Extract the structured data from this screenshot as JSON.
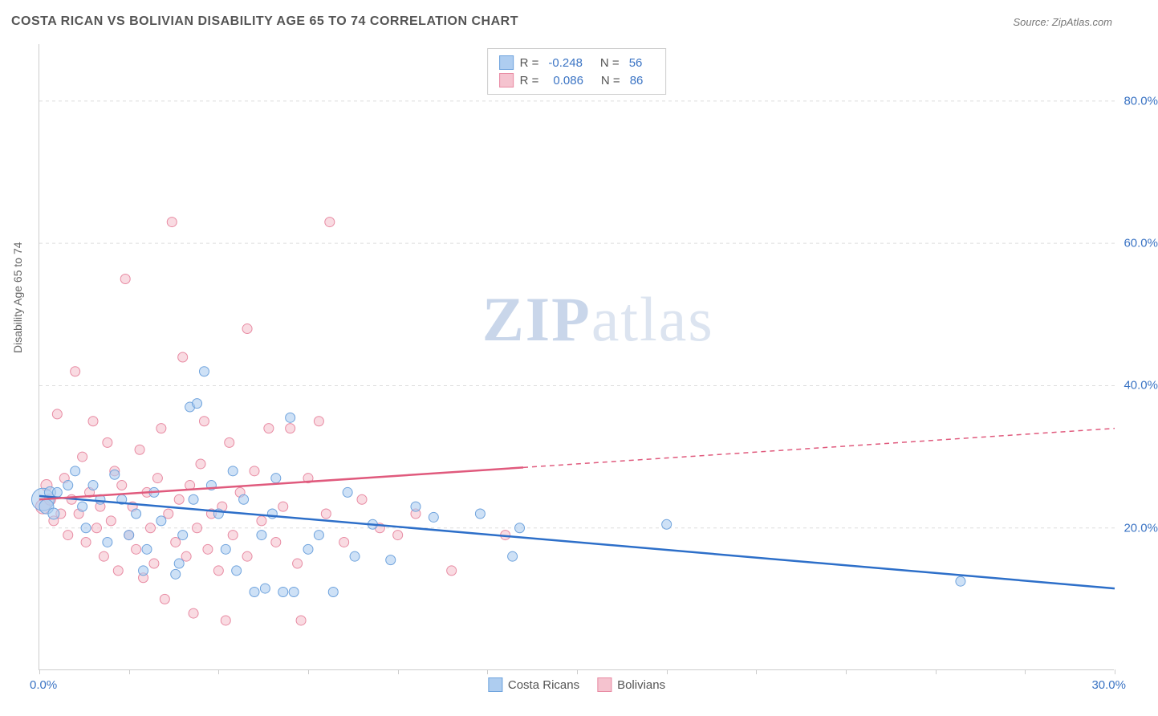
{
  "title": "COSTA RICAN VS BOLIVIAN DISABILITY AGE 65 TO 74 CORRELATION CHART",
  "source": "Source: ZipAtlas.com",
  "watermark_a": "ZIP",
  "watermark_b": "atlas",
  "ylabel": "Disability Age 65 to 74",
  "chart": {
    "type": "scatter-with-trend",
    "xlim": [
      0,
      30
    ],
    "ylim": [
      0,
      88
    ],
    "x_origin_label": "0.0%",
    "x_max_label": "30.0%",
    "x_ticks": [
      0,
      2.5,
      5,
      7.5,
      10,
      12.5,
      15,
      17.5,
      20,
      22.5,
      25,
      27.5,
      30
    ],
    "y_gridlines": [
      20,
      40,
      60,
      80
    ],
    "y_tick_labels": [
      "20.0%",
      "40.0%",
      "60.0%",
      "80.0%"
    ],
    "background_color": "#ffffff",
    "grid_color": "#dddddd",
    "axis_color": "#cccccc",
    "tick_label_color": "#3b74c4",
    "series": [
      {
        "name": "Costa Ricans",
        "fill": "#aecdf0",
        "stroke": "#6fa3dd",
        "line_color": "#2d6fc9",
        "r_value": "-0.248",
        "n_value": "56",
        "trend": {
          "x1": 0,
          "y1": 24.5,
          "x2": 30,
          "y2": 11.5,
          "solid_until_x": 30
        },
        "points": [
          {
            "x": 0.1,
            "y": 24,
            "r": 14
          },
          {
            "x": 0.2,
            "y": 23,
            "r": 9
          },
          {
            "x": 0.3,
            "y": 25,
            "r": 7
          },
          {
            "x": 0.4,
            "y": 22,
            "r": 7
          },
          {
            "x": 0.5,
            "y": 25,
            "r": 6
          },
          {
            "x": 0.8,
            "y": 26,
            "r": 6
          },
          {
            "x": 1.0,
            "y": 28,
            "r": 6
          },
          {
            "x": 1.2,
            "y": 23,
            "r": 6
          },
          {
            "x": 1.3,
            "y": 20,
            "r": 6
          },
          {
            "x": 1.5,
            "y": 26,
            "r": 6
          },
          {
            "x": 1.7,
            "y": 24,
            "r": 6
          },
          {
            "x": 1.9,
            "y": 18,
            "r": 6
          },
          {
            "x": 2.1,
            "y": 27.5,
            "r": 6
          },
          {
            "x": 2.3,
            "y": 24,
            "r": 6
          },
          {
            "x": 2.5,
            "y": 19,
            "r": 6
          },
          {
            "x": 2.7,
            "y": 22,
            "r": 6
          },
          {
            "x": 2.9,
            "y": 14,
            "r": 6
          },
          {
            "x": 3.0,
            "y": 17,
            "r": 6
          },
          {
            "x": 3.2,
            "y": 25,
            "r": 6
          },
          {
            "x": 3.4,
            "y": 21,
            "r": 6
          },
          {
            "x": 3.8,
            "y": 13.5,
            "r": 6
          },
          {
            "x": 3.9,
            "y": 15,
            "r": 6
          },
          {
            "x": 4.0,
            "y": 19,
            "r": 6
          },
          {
            "x": 4.2,
            "y": 37,
            "r": 6
          },
          {
            "x": 4.3,
            "y": 24,
            "r": 6
          },
          {
            "x": 4.4,
            "y": 37.5,
            "r": 6
          },
          {
            "x": 4.6,
            "y": 42,
            "r": 6
          },
          {
            "x": 4.8,
            "y": 26,
            "r": 6
          },
          {
            "x": 5.0,
            "y": 22,
            "r": 6
          },
          {
            "x": 5.2,
            "y": 17,
            "r": 6
          },
          {
            "x": 5.4,
            "y": 28,
            "r": 6
          },
          {
            "x": 5.5,
            "y": 14,
            "r": 6
          },
          {
            "x": 5.7,
            "y": 24,
            "r": 6
          },
          {
            "x": 6.0,
            "y": 11,
            "r": 6
          },
          {
            "x": 6.2,
            "y": 19,
            "r": 6
          },
          {
            "x": 6.3,
            "y": 11.5,
            "r": 6
          },
          {
            "x": 6.5,
            "y": 22,
            "r": 6
          },
          {
            "x": 6.6,
            "y": 27,
            "r": 6
          },
          {
            "x": 6.8,
            "y": 11,
            "r": 6
          },
          {
            "x": 7.0,
            "y": 35.5,
            "r": 6
          },
          {
            "x": 7.1,
            "y": 11,
            "r": 6
          },
          {
            "x": 7.5,
            "y": 17,
            "r": 6
          },
          {
            "x": 7.8,
            "y": 19,
            "r": 6
          },
          {
            "x": 8.2,
            "y": 11,
            "r": 6
          },
          {
            "x": 8.6,
            "y": 25,
            "r": 6
          },
          {
            "x": 8.8,
            "y": 16,
            "r": 6
          },
          {
            "x": 9.3,
            "y": 20.5,
            "r": 6
          },
          {
            "x": 9.8,
            "y": 15.5,
            "r": 6
          },
          {
            "x": 10.5,
            "y": 23,
            "r": 6
          },
          {
            "x": 11.0,
            "y": 21.5,
            "r": 6
          },
          {
            "x": 12.3,
            "y": 22,
            "r": 6
          },
          {
            "x": 13.2,
            "y": 16,
            "r": 6
          },
          {
            "x": 13.4,
            "y": 20,
            "r": 6
          },
          {
            "x": 17.5,
            "y": 20.5,
            "r": 6
          },
          {
            "x": 25.7,
            "y": 12.5,
            "r": 6
          }
        ]
      },
      {
        "name": "Bolivians",
        "fill": "#f5c3cf",
        "stroke": "#e88ba3",
        "line_color": "#e05a7d",
        "r_value": "0.086",
        "n_value": "86",
        "trend": {
          "x1": 0,
          "y1": 24,
          "x2": 30,
          "y2": 34,
          "solid_until_x": 13.5
        },
        "points": [
          {
            "x": 0.1,
            "y": 23,
            "r": 9
          },
          {
            "x": 0.2,
            "y": 26,
            "r": 7
          },
          {
            "x": 0.3,
            "y": 24,
            "r": 7
          },
          {
            "x": 0.4,
            "y": 21,
            "r": 6
          },
          {
            "x": 0.5,
            "y": 36,
            "r": 6
          },
          {
            "x": 0.6,
            "y": 22,
            "r": 6
          },
          {
            "x": 0.7,
            "y": 27,
            "r": 6
          },
          {
            "x": 0.8,
            "y": 19,
            "r": 6
          },
          {
            "x": 0.9,
            "y": 24,
            "r": 6
          },
          {
            "x": 1.0,
            "y": 42,
            "r": 6
          },
          {
            "x": 1.1,
            "y": 22,
            "r": 6
          },
          {
            "x": 1.2,
            "y": 30,
            "r": 6
          },
          {
            "x": 1.3,
            "y": 18,
            "r": 6
          },
          {
            "x": 1.4,
            "y": 25,
            "r": 6
          },
          {
            "x": 1.5,
            "y": 35,
            "r": 6
          },
          {
            "x": 1.6,
            "y": 20,
            "r": 6
          },
          {
            "x": 1.7,
            "y": 23,
            "r": 6
          },
          {
            "x": 1.8,
            "y": 16,
            "r": 6
          },
          {
            "x": 1.9,
            "y": 32,
            "r": 6
          },
          {
            "x": 2.0,
            "y": 21,
            "r": 6
          },
          {
            "x": 2.1,
            "y": 28,
            "r": 6
          },
          {
            "x": 2.2,
            "y": 14,
            "r": 6
          },
          {
            "x": 2.3,
            "y": 26,
            "r": 6
          },
          {
            "x": 2.4,
            "y": 55,
            "r": 6
          },
          {
            "x": 2.5,
            "y": 19,
            "r": 6
          },
          {
            "x": 2.6,
            "y": 23,
            "r": 6
          },
          {
            "x": 2.7,
            "y": 17,
            "r": 6
          },
          {
            "x": 2.8,
            "y": 31,
            "r": 6
          },
          {
            "x": 2.9,
            "y": 13,
            "r": 6
          },
          {
            "x": 3.0,
            "y": 25,
            "r": 6
          },
          {
            "x": 3.1,
            "y": 20,
            "r": 6
          },
          {
            "x": 3.2,
            "y": 15,
            "r": 6
          },
          {
            "x": 3.3,
            "y": 27,
            "r": 6
          },
          {
            "x": 3.4,
            "y": 34,
            "r": 6
          },
          {
            "x": 3.5,
            "y": 10,
            "r": 6
          },
          {
            "x": 3.6,
            "y": 22,
            "r": 6
          },
          {
            "x": 3.7,
            "y": 63,
            "r": 6
          },
          {
            "x": 3.8,
            "y": 18,
            "r": 6
          },
          {
            "x": 3.9,
            "y": 24,
            "r": 6
          },
          {
            "x": 4.0,
            "y": 44,
            "r": 6
          },
          {
            "x": 4.1,
            "y": 16,
            "r": 6
          },
          {
            "x": 4.2,
            "y": 26,
            "r": 6
          },
          {
            "x": 4.3,
            "y": 8,
            "r": 6
          },
          {
            "x": 4.4,
            "y": 20,
            "r": 6
          },
          {
            "x": 4.5,
            "y": 29,
            "r": 6
          },
          {
            "x": 4.6,
            "y": 35,
            "r": 6
          },
          {
            "x": 4.7,
            "y": 17,
            "r": 6
          },
          {
            "x": 4.8,
            "y": 22,
            "r": 6
          },
          {
            "x": 5.0,
            "y": 14,
            "r": 6
          },
          {
            "x": 5.1,
            "y": 23,
            "r": 6
          },
          {
            "x": 5.2,
            "y": 7,
            "r": 6
          },
          {
            "x": 5.3,
            "y": 32,
            "r": 6
          },
          {
            "x": 5.4,
            "y": 19,
            "r": 6
          },
          {
            "x": 5.6,
            "y": 25,
            "r": 6
          },
          {
            "x": 5.8,
            "y": 16,
            "r": 6
          },
          {
            "x": 5.8,
            "y": 48,
            "r": 6
          },
          {
            "x": 6.0,
            "y": 28,
            "r": 6
          },
          {
            "x": 6.2,
            "y": 21,
            "r": 6
          },
          {
            "x": 6.4,
            "y": 34,
            "r": 6
          },
          {
            "x": 6.6,
            "y": 18,
            "r": 6
          },
          {
            "x": 6.8,
            "y": 23,
            "r": 6
          },
          {
            "x": 7.0,
            "y": 34,
            "r": 6
          },
          {
            "x": 7.2,
            "y": 15,
            "r": 6
          },
          {
            "x": 7.3,
            "y": 7,
            "r": 6
          },
          {
            "x": 7.5,
            "y": 27,
            "r": 6
          },
          {
            "x": 7.8,
            "y": 35,
            "r": 6
          },
          {
            "x": 8.0,
            "y": 22,
            "r": 6
          },
          {
            "x": 8.1,
            "y": 63,
            "r": 6
          },
          {
            "x": 8.5,
            "y": 18,
            "r": 6
          },
          {
            "x": 9.0,
            "y": 24,
            "r": 6
          },
          {
            "x": 9.5,
            "y": 20,
            "r": 6
          },
          {
            "x": 10.0,
            "y": 19,
            "r": 6
          },
          {
            "x": 10.5,
            "y": 22,
            "r": 6
          },
          {
            "x": 11.5,
            "y": 14,
            "r": 6
          },
          {
            "x": 13.0,
            "y": 19,
            "r": 6
          }
        ]
      }
    ]
  },
  "legend_labels": {
    "R": "R =",
    "N": "N ="
  }
}
